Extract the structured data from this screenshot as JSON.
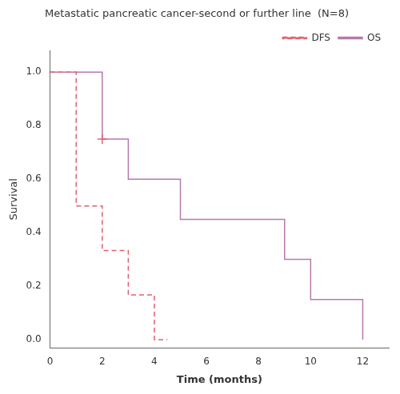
{
  "chart_data": {
    "type": "step",
    "title": "Metastatic pancreatic cancer-second or further line  (N=8)",
    "xlabel": "Time (months)",
    "ylabel": "Survival",
    "series": [
      {
        "name": "DFS",
        "color": "#e06070",
        "line_style": "dashed",
        "x": [
          0,
          1,
          1,
          2,
          2,
          3,
          3,
          4,
          4,
          4.5
        ],
        "values": [
          1.0,
          1.0,
          0.5,
          0.5,
          0.333,
          0.333,
          0.167,
          0.167,
          0.0,
          0.0
        ]
      },
      {
        "name": "OS",
        "color": "#b878b0",
        "line_style": "solid",
        "x": [
          0,
          2,
          2,
          3,
          3,
          5,
          5,
          6,
          6,
          9,
          9,
          10,
          10,
          12,
          12
        ],
        "values": [
          1.0,
          1.0,
          0.75,
          0.75,
          0.6,
          0.6,
          0.45,
          0.45,
          0.45,
          0.45,
          0.3,
          0.3,
          0.15,
          0.15,
          0.0
        ]
      },
      {
        "type": "scatter",
        "marker": "plus",
        "color": "#e06070",
        "x": [
          2
        ],
        "values": [
          0.75
        ]
      }
    ],
    "xlim": [
      0,
      13
    ],
    "ylim": [
      -0.03,
      1.08
    ],
    "xticks": [
      0,
      2,
      4,
      6,
      8,
      10,
      12
    ],
    "yticks": [
      {
        "value": 0.0,
        "label": "0.0"
      },
      0.2,
      0.4,
      0.6,
      0.8,
      {
        "value": 1.0,
        "label": "1.0"
      }
    ],
    "grid": false,
    "legend": "upper right"
  }
}
